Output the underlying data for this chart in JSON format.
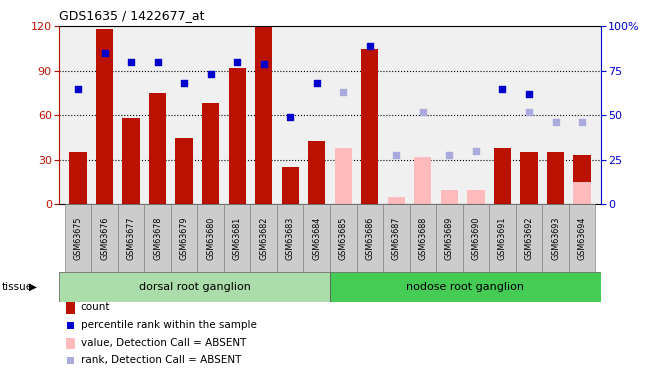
{
  "title": "GDS1635 / 1422677_at",
  "categories": [
    "GSM63675",
    "GSM63676",
    "GSM63677",
    "GSM63678",
    "GSM63679",
    "GSM63680",
    "GSM63681",
    "GSM63682",
    "GSM63683",
    "GSM63684",
    "GSM63685",
    "GSM63686",
    "GSM63687",
    "GSM63688",
    "GSM63689",
    "GSM63690",
    "GSM63691",
    "GSM63692",
    "GSM63693",
    "GSM63694"
  ],
  "count_values": [
    35,
    118,
    58,
    75,
    45,
    68,
    92,
    120,
    25,
    43,
    null,
    105,
    null,
    null,
    null,
    null,
    38,
    35,
    35,
    33
  ],
  "count_absent": [
    null,
    null,
    null,
    null,
    null,
    null,
    null,
    null,
    null,
    null,
    38,
    null,
    5,
    32,
    10,
    10,
    null,
    null,
    null,
    15
  ],
  "rank_values": [
    65,
    85,
    80,
    80,
    68,
    73,
    80,
    79,
    49,
    68,
    null,
    89,
    null,
    null,
    null,
    null,
    65,
    62,
    null,
    null
  ],
  "rank_absent": [
    null,
    null,
    null,
    null,
    null,
    null,
    null,
    null,
    null,
    null,
    63,
    null,
    28,
    52,
    28,
    30,
    null,
    52,
    46,
    46
  ],
  "group1_label": "dorsal root ganglion",
  "group2_label": "nodose root ganglion",
  "bar_color": "#bb1100",
  "bar_absent_color": "#ffbbbb",
  "rank_color": "#0000cc",
  "rank_absent_color": "#aaaadd",
  "group1_bg": "#aaddaa",
  "group2_bg": "#44cc55",
  "tick_bg": "#cccccc",
  "plot_bg": "#f0f0f0"
}
